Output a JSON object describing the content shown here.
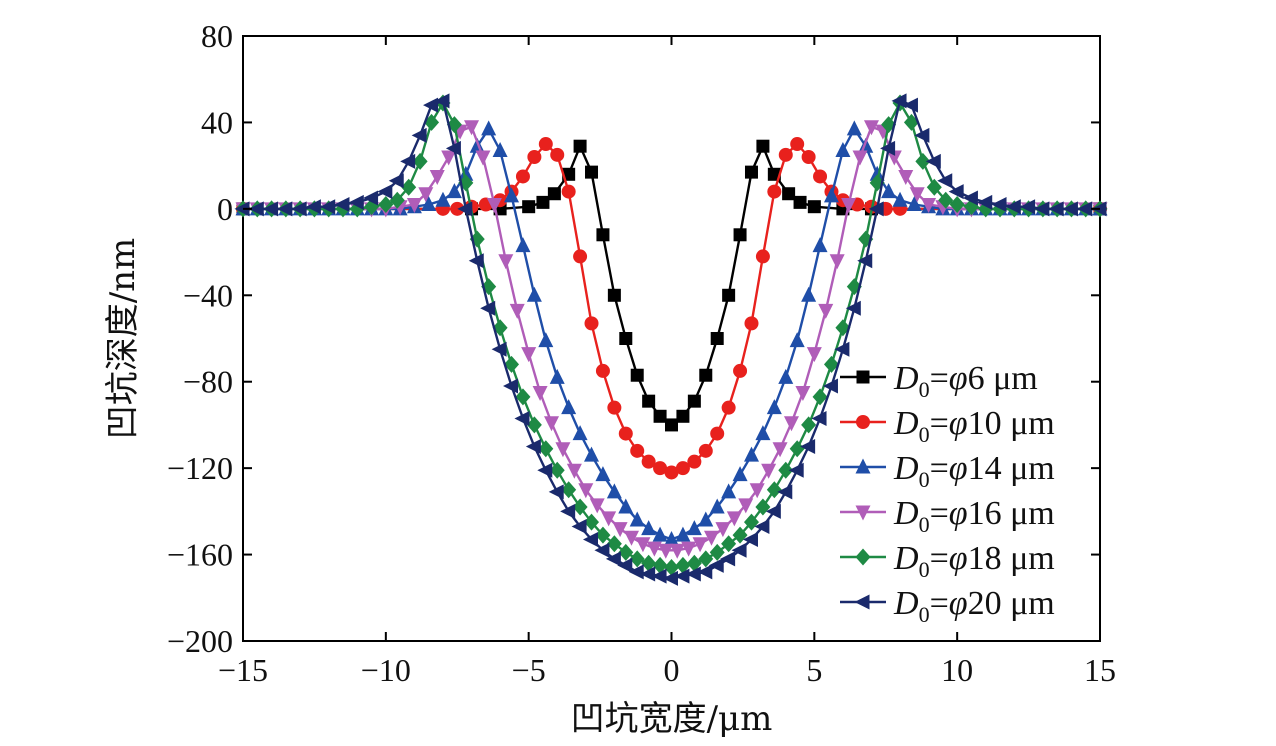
{
  "chart_data": {
    "type": "line",
    "title": "",
    "xlabel": "凹坑宽度/μm",
    "ylabel": "凹坑深度/nm",
    "xlim": [
      -15,
      15
    ],
    "ylim": [
      -200,
      80
    ],
    "xticks": [
      -15,
      -10,
      -5,
      0,
      5,
      10,
      15
    ],
    "yticks": [
      -200,
      -160,
      -120,
      -80,
      -40,
      0,
      40,
      80
    ],
    "xtick_labels": [
      "−15",
      "−10",
      "−5",
      "0",
      "5",
      "10",
      "15"
    ],
    "ytick_labels": [
      "−200",
      "−160",
      "−120",
      "−80",
      "−40",
      "0",
      "40",
      "80"
    ],
    "grid": false,
    "legend_position": "right",
    "series": [
      {
        "name": "D0=φ6 μm",
        "legend": {
          "d": "D",
          "sub": "0",
          "eq": "=",
          "phi": "φ",
          "rest": "6 μm"
        },
        "color": "#000000",
        "marker": "square",
        "x": [
          -15,
          -7,
          -6,
          -5,
          -4.5,
          -4.1,
          -3.6,
          -3.2,
          -2.8,
          -2.4,
          -2,
          -1.6,
          -1.2,
          -0.8,
          -0.4,
          0,
          0.4,
          0.8,
          1.2,
          1.6,
          2,
          2.4,
          2.8,
          3.2,
          3.6,
          4.1,
          4.5,
          5,
          6,
          7,
          15
        ],
        "y": [
          0,
          0,
          0,
          1,
          3,
          7,
          16,
          29,
          17,
          -12,
          -40,
          -60,
          -77,
          -89,
          -96,
          -100,
          -96,
          -89,
          -77,
          -60,
          -40,
          -12,
          17,
          29,
          16,
          7,
          3,
          1,
          0,
          0,
          0
        ]
      },
      {
        "name": "D0=φ10 μm",
        "legend": {
          "d": "D",
          "sub": "0",
          "eq": "=",
          "phi": "φ",
          "rest": "10 μm"
        },
        "color": "#e8211d",
        "marker": "circle",
        "x": [
          -15,
          -8,
          -7.5,
          -7,
          -6.5,
          -6,
          -5.6,
          -5.2,
          -4.8,
          -4.4,
          -4,
          -3.6,
          -3.2,
          -2.8,
          -2.4,
          -2,
          -1.6,
          -1.2,
          -0.8,
          -0.4,
          0,
          0.4,
          0.8,
          1.2,
          1.6,
          2,
          2.4,
          2.8,
          3.2,
          3.6,
          4,
          4.4,
          4.8,
          5.2,
          5.6,
          6,
          6.5,
          7,
          7.5,
          8,
          15
        ],
        "y": [
          0,
          0,
          0,
          1,
          2,
          4,
          8,
          15,
          24,
          30,
          25,
          8,
          -22,
          -53,
          -75,
          -92,
          -104,
          -112,
          -117,
          -120,
          -122,
          -120,
          -117,
          -112,
          -104,
          -92,
          -75,
          -53,
          -22,
          8,
          25,
          30,
          24,
          15,
          8,
          4,
          2,
          1,
          0,
          0,
          0
        ]
      },
      {
        "name": "D0=φ14 μm",
        "legend": {
          "d": "D",
          "sub": "0",
          "eq": "=",
          "phi": "φ",
          "rest": "14 μm"
        },
        "color": "#1f4ea8",
        "marker": "triangle-up",
        "x": [
          -15,
          -14.5,
          -14,
          -13.5,
          -13,
          -12.5,
          -12,
          -11.5,
          -11,
          -10.5,
          -10,
          -9.5,
          -9,
          -8.5,
          -8,
          -7.6,
          -7.2,
          -6.8,
          -6.4,
          -6,
          -5.6,
          -5.2,
          -4.8,
          -4.4,
          -4,
          -3.6,
          -3.2,
          -2.8,
          -2.4,
          -2,
          -1.6,
          -1.2,
          -0.8,
          -0.4,
          0,
          0.4,
          0.8,
          1.2,
          1.6,
          2,
          2.4,
          2.8,
          3.2,
          3.6,
          4,
          4.4,
          4.8,
          5.2,
          5.6,
          6,
          6.4,
          6.8,
          7.2,
          7.6,
          8,
          8.5,
          9,
          9.5,
          10,
          10.5,
          11,
          11.5,
          12,
          12.5,
          13,
          13.5,
          14,
          14.5,
          15
        ],
        "y": [
          0,
          0,
          0,
          0,
          0,
          0,
          0,
          0,
          0,
          0,
          0,
          0,
          1,
          2,
          4,
          8,
          16,
          29,
          37,
          27,
          6,
          -17,
          -40,
          -61,
          -78,
          -92,
          -104,
          -114,
          -123,
          -131,
          -138,
          -144,
          -148,
          -151,
          -153,
          -151,
          -148,
          -144,
          -138,
          -131,
          -123,
          -114,
          -104,
          -92,
          -78,
          -61,
          -40,
          -17,
          6,
          27,
          37,
          29,
          16,
          8,
          4,
          2,
          1,
          0,
          0,
          0,
          0,
          0,
          0,
          0,
          0,
          0,
          0,
          0,
          0
        ]
      },
      {
        "name": "D0=φ16 μm",
        "legend": {
          "d": "D",
          "sub": "0",
          "eq": "=",
          "phi": "φ",
          "rest": "16 μm"
        },
        "color": "#b05db8",
        "marker": "triangle-down",
        "x": [
          -15,
          -14.5,
          -14,
          -13.5,
          -13,
          -12.5,
          -12,
          -11.5,
          -11,
          -10.5,
          -10,
          -9.5,
          -9,
          -8.6,
          -8.2,
          -7.8,
          -7.4,
          -7,
          -6.6,
          -6.2,
          -5.8,
          -5.4,
          -5,
          -4.6,
          -4.2,
          -3.8,
          -3.4,
          -3,
          -2.6,
          -2.2,
          -1.8,
          -1.4,
          -1,
          -0.6,
          -0.2,
          0.2,
          0.6,
          1,
          1.4,
          1.8,
          2.2,
          2.6,
          3,
          3.4,
          3.8,
          4.2,
          4.6,
          5,
          5.4,
          5.8,
          6.2,
          6.6,
          7,
          7.4,
          7.8,
          8.2,
          8.6,
          9,
          9.5,
          10,
          10.5,
          11,
          11.5,
          12,
          12.5,
          13,
          13.5,
          14,
          14.5,
          15
        ],
        "y": [
          0,
          0,
          0,
          0,
          0,
          0,
          0,
          0,
          0,
          0,
          0,
          1,
          2,
          7,
          15,
          24,
          36,
          38,
          24,
          2,
          -24,
          -47,
          -67,
          -85,
          -99,
          -111,
          -121,
          -130,
          -137,
          -143,
          -148,
          -152,
          -155,
          -157,
          -158,
          -158,
          -157,
          -155,
          -152,
          -148,
          -143,
          -137,
          -130,
          -121,
          -111,
          -99,
          -85,
          -67,
          -47,
          -24,
          2,
          24,
          38,
          36,
          24,
          15,
          7,
          2,
          1,
          0,
          0,
          0,
          0,
          0,
          0,
          0,
          0,
          0,
          0,
          0
        ]
      },
      {
        "name": "D0=φ18 μm",
        "legend": {
          "d": "D",
          "sub": "0",
          "eq": "=",
          "phi": "φ",
          "rest": "18 μm"
        },
        "color": "#1e8a44",
        "marker": "diamond",
        "x": [
          -15,
          -14.5,
          -14,
          -13.5,
          -13,
          -12.5,
          -12,
          -11.5,
          -11,
          -10.5,
          -10,
          -9.6,
          -9.2,
          -8.8,
          -8.4,
          -8,
          -7.6,
          -7.2,
          -6.8,
          -6.4,
          -6,
          -5.6,
          -5.2,
          -4.8,
          -4.4,
          -4,
          -3.6,
          -3.2,
          -2.8,
          -2.4,
          -2,
          -1.6,
          -1.2,
          -0.8,
          -0.4,
          0,
          0.4,
          0.8,
          1.2,
          1.6,
          2,
          2.4,
          2.8,
          3.2,
          3.6,
          4,
          4.4,
          4.8,
          5.2,
          5.6,
          6,
          6.4,
          6.8,
          7.2,
          7.6,
          8,
          8.4,
          8.8,
          9.2,
          9.6,
          10,
          10.5,
          11,
          11.5,
          12,
          12.5,
          13,
          13.5,
          14,
          14.5,
          15
        ],
        "y": [
          0,
          0,
          0,
          0,
          0,
          0,
          0,
          0,
          0,
          1,
          2,
          4,
          10,
          22,
          40,
          49,
          39,
          12,
          -14,
          -36,
          -55,
          -72,
          -87,
          -100,
          -111,
          -121,
          -130,
          -138,
          -145,
          -151,
          -155,
          -159,
          -162,
          -164,
          -165,
          -166,
          -165,
          -164,
          -162,
          -159,
          -155,
          -151,
          -145,
          -138,
          -130,
          -121,
          -111,
          -100,
          -87,
          -72,
          -55,
          -36,
          -14,
          12,
          39,
          49,
          40,
          22,
          10,
          4,
          2,
          1,
          0,
          0,
          0,
          0,
          0,
          0,
          0,
          0,
          0
        ]
      },
      {
        "name": "D0=φ20 μm",
        "legend": {
          "d": "D",
          "sub": "0",
          "eq": "=",
          "phi": "φ",
          "rest": "20 μm"
        },
        "color": "#1a2a6c",
        "marker": "triangle-left",
        "x": [
          -15,
          -14.5,
          -14,
          -13.5,
          -13,
          -12.5,
          -12,
          -11.5,
          -11,
          -10.5,
          -10,
          -9.6,
          -9.2,
          -8.8,
          -8.4,
          -8,
          -7.6,
          -7.2,
          -6.8,
          -6.4,
          -6,
          -5.6,
          -5.2,
          -4.8,
          -4.4,
          -4,
          -3.6,
          -3.2,
          -2.8,
          -2.4,
          -2,
          -1.6,
          -1.2,
          -0.8,
          -0.4,
          0,
          0.4,
          0.8,
          1.2,
          1.6,
          2,
          2.4,
          2.8,
          3.2,
          3.6,
          4,
          4.4,
          4.8,
          5.2,
          5.6,
          6,
          6.4,
          6.8,
          7.2,
          7.6,
          8,
          8.4,
          8.8,
          9.2,
          9.6,
          10,
          10.5,
          11,
          11.5,
          12,
          12.5,
          13,
          13.5,
          14,
          14.5,
          15
        ],
        "y": [
          0,
          0,
          0,
          0,
          0,
          1,
          1,
          2,
          3,
          5,
          8,
          13,
          22,
          34,
          48,
          50,
          28,
          0,
          -24,
          -46,
          -65,
          -82,
          -97,
          -110,
          -121,
          -131,
          -140,
          -147,
          -153,
          -158,
          -162,
          -165,
          -168,
          -169,
          -170,
          -171,
          -170,
          -169,
          -168,
          -165,
          -162,
          -158,
          -153,
          -147,
          -140,
          -131,
          -121,
          -110,
          -97,
          -82,
          -65,
          -46,
          -24,
          0,
          28,
          50,
          48,
          34,
          22,
          13,
          8,
          5,
          3,
          2,
          1,
          1,
          0,
          0,
          0,
          0,
          0
        ]
      }
    ]
  }
}
